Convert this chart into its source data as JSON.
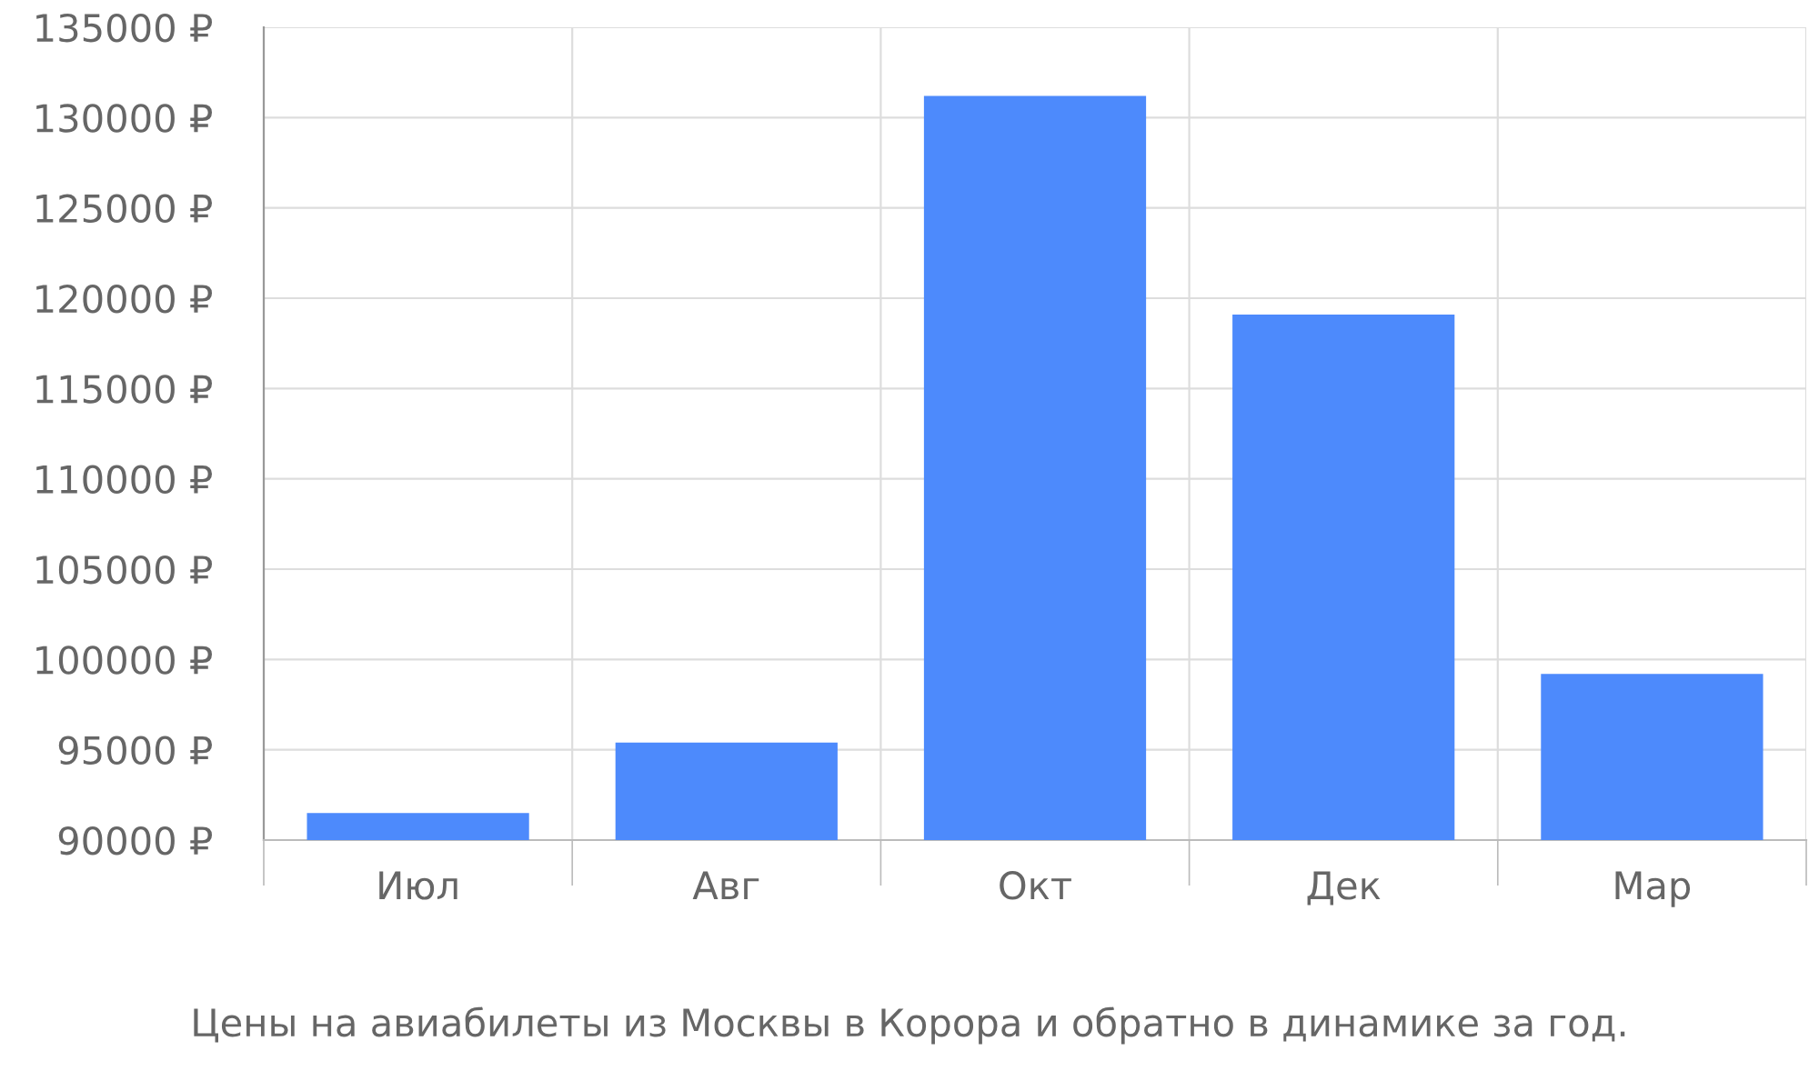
{
  "chart_data": {
    "type": "bar",
    "categories": [
      "Июл",
      "Авг",
      "Окт",
      "Дек",
      "Мар"
    ],
    "values": [
      91500,
      95400,
      131200,
      119100,
      99200
    ],
    "color": "#4d8afc",
    "ylim": [
      90000,
      135000
    ],
    "yticks": [
      {
        "value": 90000,
        "label": "90000 ₽"
      },
      {
        "value": 95000,
        "label": "95000 ₽"
      },
      {
        "value": 100000,
        "label": "100000 ₽"
      },
      {
        "value": 105000,
        "label": "105000 ₽"
      },
      {
        "value": 110000,
        "label": "110000 ₽"
      },
      {
        "value": 115000,
        "label": "115000 ₽"
      },
      {
        "value": 120000,
        "label": "120000 ₽"
      },
      {
        "value": 125000,
        "label": "125000 ₽"
      },
      {
        "value": 130000,
        "label": "130000 ₽"
      },
      {
        "value": 135000,
        "label": "135000 ₽"
      }
    ],
    "grid": true,
    "annotations": [
      "Цены на авиабилеты из Москвы в Корора и обратно в динамике за год."
    ]
  }
}
